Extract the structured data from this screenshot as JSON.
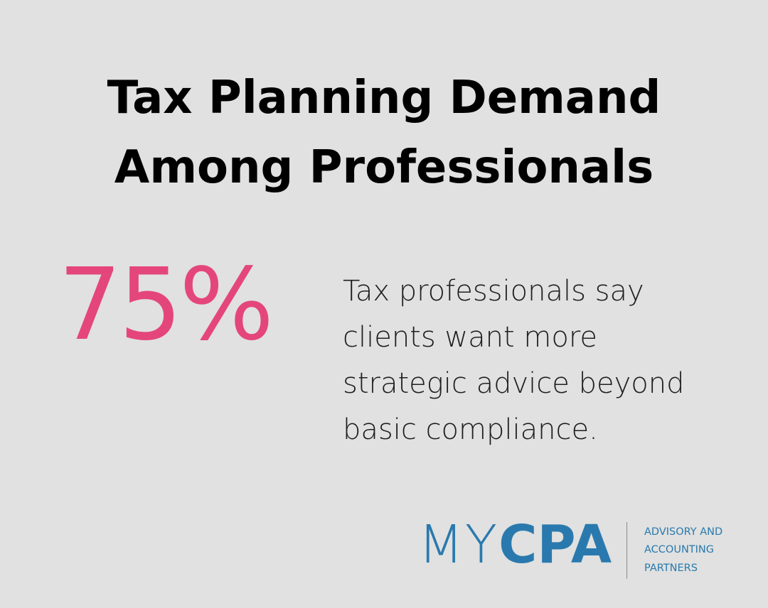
{
  "title": [
    "Tax Planning Demand",
    "Among Professionals"
  ],
  "stat": "75%",
  "description": [
    "Tax professionals say",
    "clients want more",
    "strategic advice beyond",
    "basic compliance."
  ],
  "logo": {
    "name_light": "MY",
    "name_bold": "CPA",
    "tagline": [
      "ADVISORY AND",
      "ACCOUNTING",
      "PARTNERS"
    ]
  }
}
